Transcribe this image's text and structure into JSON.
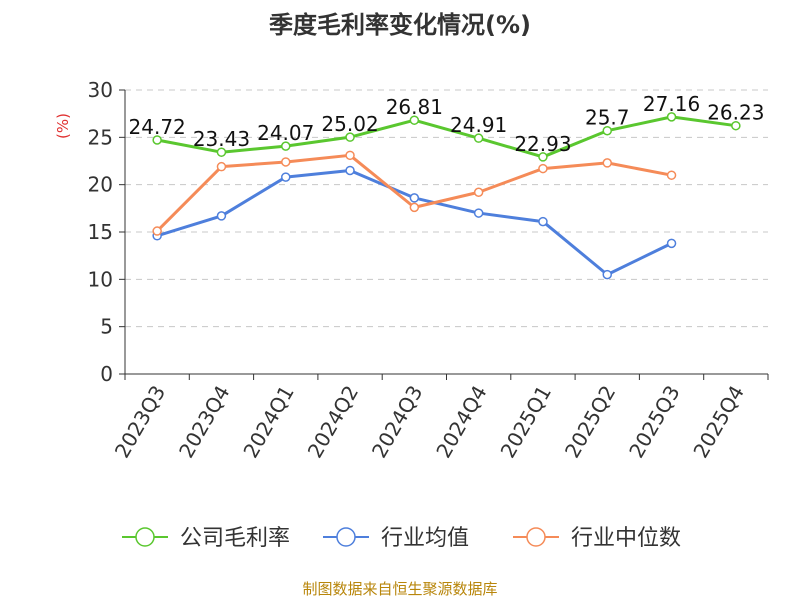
{
  "chart_data": {
    "type": "line",
    "title": "季度毛利率变化情况(%)",
    "ylabel": "(%)",
    "xlabel": "",
    "categories": [
      "2023Q3",
      "2023Q4",
      "2024Q1",
      "2024Q2",
      "2024Q3",
      "2024Q4",
      "2025Q1",
      "2025Q2",
      "2025Q3",
      "2025Q4"
    ],
    "ylim": [
      0,
      30
    ],
    "yticks": [
      0,
      5,
      10,
      15,
      20,
      25,
      30
    ],
    "grid": true,
    "legend_position": "bottom",
    "series": [
      {
        "name": "公司毛利率",
        "color": "#5ac72f",
        "values": [
          24.72,
          23.43,
          24.07,
          25.02,
          26.81,
          24.91,
          22.93,
          25.7,
          27.16,
          26.23
        ],
        "labels": [
          "24.72",
          "23.43",
          "24.07",
          "25.02",
          "26.81",
          "24.91",
          "22.93",
          "25.7",
          "27.16",
          "26.23"
        ]
      },
      {
        "name": "行业均值",
        "color": "#4e7fdc",
        "values": [
          14.6,
          16.7,
          20.8,
          21.5,
          18.6,
          17.0,
          16.1,
          10.5,
          13.8,
          null
        ]
      },
      {
        "name": "行业中位数",
        "color": "#f58b58",
        "values": [
          15.1,
          21.9,
          22.4,
          23.1,
          17.6,
          19.2,
          21.7,
          22.3,
          21.0,
          null
        ]
      }
    ]
  },
  "footer": {
    "source": "制图数据来自恒生聚源数据库"
  },
  "colors": {
    "axis": "#333333",
    "grid": "#c8c8c8",
    "ylabel": "#e03030",
    "source": "#b8860b"
  }
}
